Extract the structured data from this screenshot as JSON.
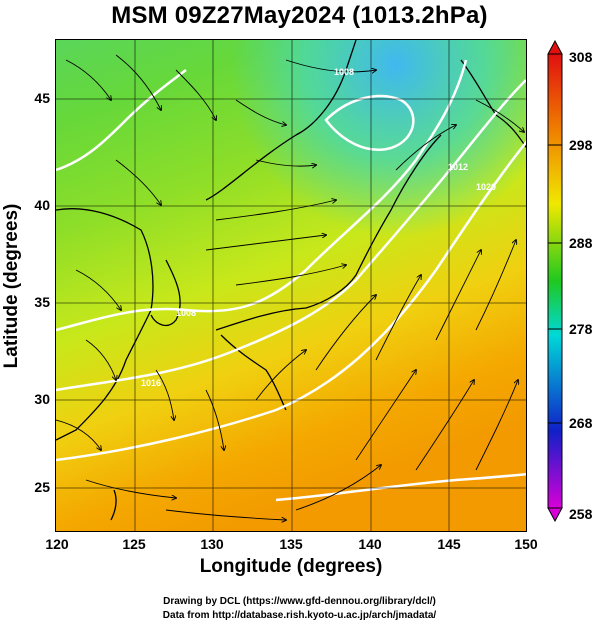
{
  "title": "MSM 09Z27May2024 (1013.2hPa)",
  "axes": {
    "xlabel": "Longitude (degrees)",
    "ylabel": "Latitude  (degrees)",
    "xticks": [
      "120",
      "125",
      "130",
      "135",
      "140",
      "145",
      "150"
    ],
    "yticks": [
      "25",
      "30",
      "35",
      "40",
      "45"
    ],
    "xlim": [
      120,
      150
    ],
    "ylim": [
      22.4,
      47.6
    ]
  },
  "colorbar": {
    "ticks": [
      "308",
      "298",
      "288",
      "278",
      "268",
      "258"
    ],
    "range": [
      258,
      308
    ],
    "colors": [
      "#d800d8",
      "#1020c8",
      "#00d8d8",
      "#20c820",
      "#f0e800",
      "#f08000",
      "#e01010"
    ]
  },
  "contour_labels": [
    "1008",
    "1012",
    "1016",
    "1020",
    "1008"
  ],
  "credits": {
    "line1": "Drawing by DCL (https://www.gfd-dennou.org/library/dcl/)",
    "line2": "Data from http://database.rish.kyoto-u.ac.jp/arch/jmadata/"
  }
}
